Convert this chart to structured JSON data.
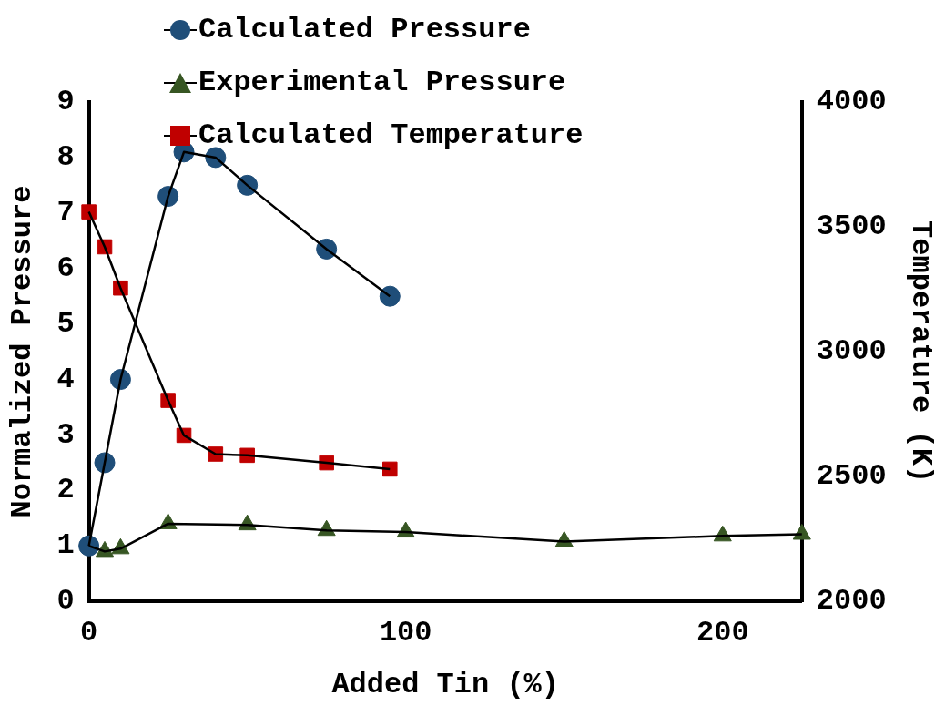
{
  "chart_data": {
    "type": "line",
    "xlabel": "Added Tin (%)",
    "ylabel": "Normalized Pressure",
    "y2label": "Temperature (K)",
    "xlim": [
      0,
      225
    ],
    "xticks": [
      0,
      100,
      200
    ],
    "ylim": [
      0,
      9
    ],
    "yticks": [
      0,
      1,
      2,
      3,
      4,
      5,
      6,
      7,
      8,
      9
    ],
    "y2lim": [
      2000,
      4000
    ],
    "y2ticks": [
      2000,
      2500,
      3000,
      3500,
      4000
    ],
    "grid": false,
    "legend": "top",
    "line_style": "solid",
    "series": [
      {
        "name": "Calculated Pressure",
        "color": "#1f4e79",
        "marker": "circle",
        "x": [
          0,
          5,
          10,
          25,
          30,
          40,
          50,
          75,
          95
        ],
        "values": [
          1.0,
          2.5,
          4.0,
          7.3,
          8.1,
          8.0,
          7.5,
          6.35,
          5.5
        ]
      },
      {
        "name": "Experimental Pressure",
        "color": "#375623",
        "marker": "triangle",
        "x": [
          0,
          5,
          10,
          25,
          50,
          75,
          100,
          150,
          200,
          225
        ],
        "values": [
          1.0,
          0.9,
          0.95,
          1.4,
          1.38,
          1.28,
          1.25,
          1.08,
          1.18,
          1.21
        ]
      },
      {
        "name": "Calculated Temperature",
        "color": "#c00000",
        "marker": "square",
        "axis": "y2",
        "x": [
          0,
          5,
          10,
          25,
          30,
          40,
          50,
          75,
          95
        ],
        "values": [
          3560,
          3420,
          3255,
          2805,
          2665,
          2590,
          2585,
          2555,
          2530
        ]
      }
    ]
  }
}
